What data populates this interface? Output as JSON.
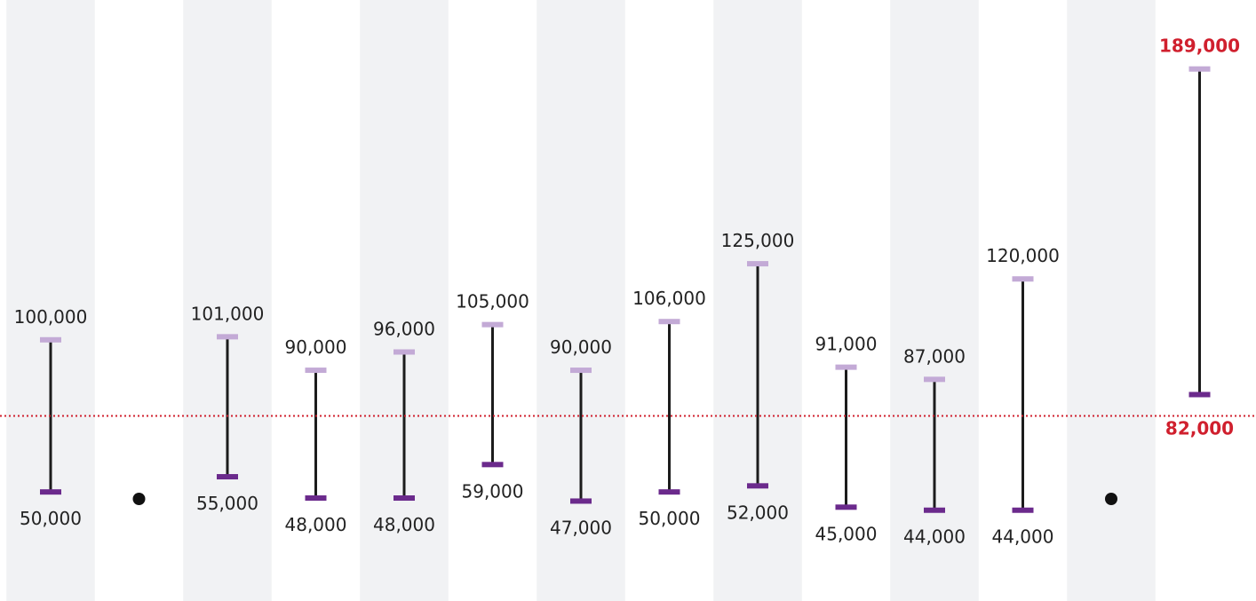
{
  "chart_data": {
    "type": "range",
    "ylim": [
      20000,
      200000
    ],
    "grid": false,
    "colors": {
      "band": "#f1f2f4",
      "high_cap": "#c3aad6",
      "low_cap": "#6b2a8c",
      "stem": "#1c1c1c",
      "reference": "#d0202e",
      "highlight": "#d0202e",
      "dot": "#111111"
    },
    "series": [
      {
        "low": 50000,
        "high": 100000,
        "low_label": "50,000",
        "high_label": "100,000"
      },
      {
        "missing": true
      },
      {
        "low": 55000,
        "high": 101000,
        "low_label": "55,000",
        "high_label": "101,000"
      },
      {
        "low": 48000,
        "high": 90000,
        "low_label": "48,000",
        "high_label": "90,000"
      },
      {
        "low": 48000,
        "high": 96000,
        "low_label": "48,000",
        "high_label": "96,000"
      },
      {
        "low": 59000,
        "high": 105000,
        "low_label": "59,000",
        "high_label": "105,000"
      },
      {
        "low": 47000,
        "high": 90000,
        "low_label": "47,000",
        "high_label": "90,000"
      },
      {
        "low": 50000,
        "high": 106000,
        "low_label": "50,000",
        "high_label": "106,000"
      },
      {
        "low": 52000,
        "high": 125000,
        "low_label": "52,000",
        "high_label": "125,000"
      },
      {
        "low": 45000,
        "high": 91000,
        "low_label": "45,000",
        "high_label": "91,000"
      },
      {
        "low": 44000,
        "high": 87000,
        "low_label": "44,000",
        "high_label": "87,000"
      },
      {
        "low": 44000,
        "high": 120000,
        "low_label": "44,000",
        "high_label": "120,000"
      },
      {
        "missing": true
      },
      {
        "low": 82000,
        "high": 189000,
        "low_label": "82,000",
        "high_label": "189,000",
        "highlight": true
      }
    ],
    "reference_line": {
      "value": 82000
    }
  }
}
